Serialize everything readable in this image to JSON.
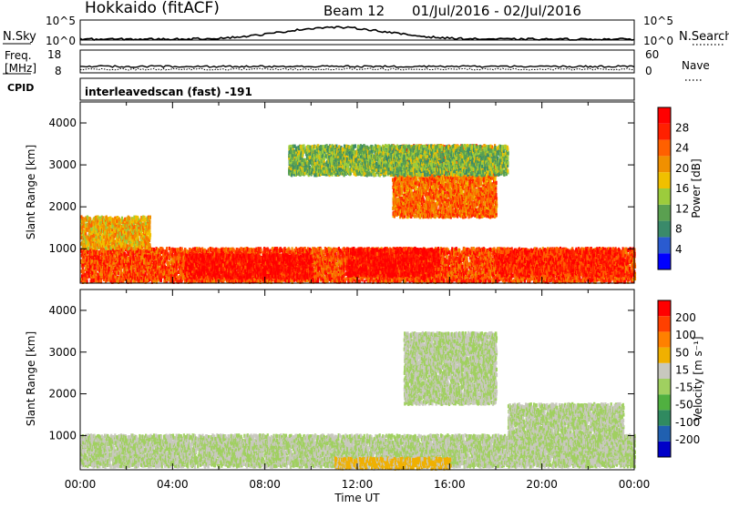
{
  "header": {
    "radar": "Hokkaido (fitACF)",
    "beam": "Beam 12",
    "date_range": "01/Jul/2016 - 02/Jul/2016"
  },
  "noise_panel": {
    "left_label": "N.Sky",
    "right_label": "N.Search",
    "left_ticks": [
      "10^5",
      "10^0"
    ],
    "right_ticks": [
      "10^5",
      "10^0"
    ]
  },
  "freq_panel": {
    "left_label_line1": "Freq.",
    "left_label_line2": "[MHz]",
    "right_label": "Nave",
    "left_ticks": [
      "18",
      "8"
    ],
    "right_ticks": [
      "60",
      "0"
    ]
  },
  "cpid": {
    "label": "CPID",
    "text": "interleavedscan (fast) -191"
  },
  "colors": {
    "power_scale": [
      "#0000ff",
      "#2a5bd0",
      "#3a8a6a",
      "#5aa050",
      "#9ccc3c",
      "#f0c000",
      "#f09000",
      "#ff6000",
      "#ff2000",
      "#ff0000"
    ],
    "velocity_scale": [
      "#0000c8",
      "#2060b0",
      "#308a60",
      "#50b040",
      "#a0d060",
      "#c8c8be",
      "#f0b000",
      "#ff8000",
      "#ff4000",
      "#ff0000"
    ]
  },
  "chart_data": [
    {
      "type": "heatmap",
      "variable": "power",
      "ylabel": "Slant Range [km]",
      "ylim": [
        180,
        4500
      ],
      "yticks": [
        "4000",
        "3000",
        "2000",
        "1000"
      ],
      "xlim": [
        "00:00",
        "24:00"
      ],
      "colorbar_label": "Power [dB]",
      "colorbar_range": [
        0,
        30
      ],
      "colorbar_ticks": [
        "28",
        "24",
        "20",
        "16",
        "12",
        "8",
        "4"
      ],
      "regions": [
        {
          "t0": 0.0,
          "t1": 24.0,
          "r0": 250,
          "r1": 1050,
          "value": 24
        },
        {
          "t0": 4.5,
          "t1": 10.0,
          "r0": 350,
          "r1": 900,
          "value": 28
        },
        {
          "t0": 11.5,
          "t1": 15.5,
          "r0": 400,
          "r1": 1050,
          "value": 28
        },
        {
          "t0": 18.0,
          "t1": 23.5,
          "r0": 400,
          "r1": 1000,
          "value": 26
        },
        {
          "t0": 0.0,
          "t1": 3.0,
          "r0": 1050,
          "r1": 1800,
          "value": 18
        },
        {
          "t0": 13.5,
          "t1": 18.0,
          "r0": 1800,
          "r1": 3500,
          "value": 22
        },
        {
          "t0": 9.0,
          "t1": 18.5,
          "r0": 2800,
          "r1": 3500,
          "value": 12
        }
      ]
    },
    {
      "type": "heatmap",
      "variable": "velocity",
      "ylabel": "Slant Range [km]",
      "xlabel": "Time UT",
      "ylim": [
        180,
        4500
      ],
      "yticks": [
        "4000",
        "3000",
        "2000",
        "1000"
      ],
      "xlim": [
        "00:00",
        "24:00"
      ],
      "xticks": [
        "00:00",
        "04:00",
        "08:00",
        "12:00",
        "16:00",
        "20:00",
        "00:00"
      ],
      "colorbar_label": "Velocity [m s⁻¹]",
      "colorbar_range": [
        -250,
        250
      ],
      "colorbar_ticks": [
        "200",
        "100",
        "50",
        "15",
        "-15",
        "-50",
        "-100",
        "-200"
      ],
      "regions": [
        {
          "t0": 0.0,
          "t1": 24.0,
          "r0": 300,
          "r1": 1050,
          "value": 0
        },
        {
          "t0": 11.0,
          "t1": 16.0,
          "r0": 250,
          "r1": 500,
          "value": 60
        },
        {
          "t0": 14.0,
          "t1": 18.0,
          "r0": 1800,
          "r1": 3500,
          "value": 0
        },
        {
          "t0": 18.5,
          "t1": 23.5,
          "r0": 700,
          "r1": 1800,
          "value": 0
        }
      ]
    }
  ]
}
